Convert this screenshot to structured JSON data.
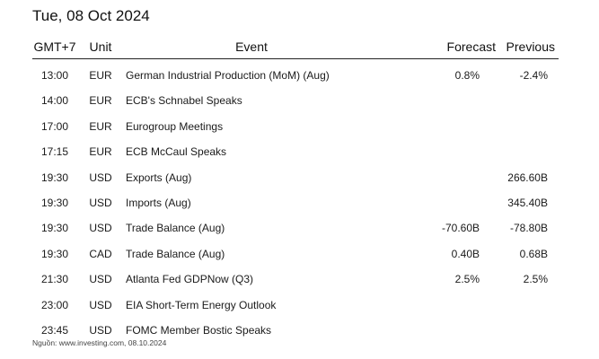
{
  "title": "Tue, 08 Oct 2024",
  "headers": {
    "time": "GMT+7",
    "unit": "Unit",
    "event": "Event",
    "forecast": "Forecast",
    "previous": "Previous"
  },
  "rows": [
    {
      "time": "13:00",
      "unit": "EUR",
      "event": "German Industrial Production (MoM) (Aug)",
      "forecast": "0.8%",
      "previous": "-2.4%"
    },
    {
      "time": "14:00",
      "unit": "EUR",
      "event": "ECB's Schnabel Speaks",
      "forecast": "",
      "previous": ""
    },
    {
      "time": "17:00",
      "unit": "EUR",
      "event": "Eurogroup Meetings",
      "forecast": "",
      "previous": ""
    },
    {
      "time": "17:15",
      "unit": "EUR",
      "event": "ECB McCaul Speaks",
      "forecast": "",
      "previous": ""
    },
    {
      "time": "19:30",
      "unit": "USD",
      "event": "Exports (Aug)",
      "forecast": "",
      "previous": "266.60B"
    },
    {
      "time": "19:30",
      "unit": "USD",
      "event": "Imports (Aug)",
      "forecast": "",
      "previous": "345.40B"
    },
    {
      "time": "19:30",
      "unit": "USD",
      "event": "Trade Balance (Aug)",
      "forecast": "-70.60B",
      "previous": "-78.80B"
    },
    {
      "time": "19:30",
      "unit": "CAD",
      "event": "Trade Balance (Aug)",
      "forecast": "0.40B",
      "previous": "0.68B"
    },
    {
      "time": "21:30",
      "unit": "USD",
      "event": "Atlanta Fed GDPNow (Q3)",
      "forecast": "2.5%",
      "previous": "2.5%"
    },
    {
      "time": "23:00",
      "unit": "USD",
      "event": "EIA Short-Term Energy Outlook",
      "forecast": "",
      "previous": ""
    },
    {
      "time": "23:45",
      "unit": "USD",
      "event": "FOMC Member Bostic Speaks",
      "forecast": "",
      "previous": ""
    }
  ],
  "source": "Nguồn: www.investing.com, 08.10.2024"
}
